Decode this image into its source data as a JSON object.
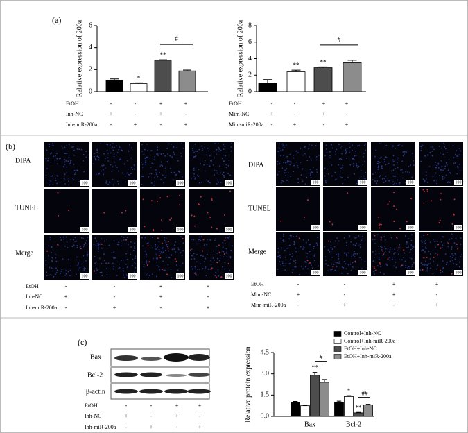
{
  "chart_data": [
    {
      "type": "bar",
      "y_label": "Relative  expression of 200a",
      "values": [
        1.0,
        0.72,
        2.85,
        1.88
      ],
      "errors": [
        0.15,
        0.08,
        0.05,
        0.08
      ],
      "colors": [
        "#000000",
        "#ffffff",
        "#4d4d4d",
        "#8c8c8c"
      ],
      "ylim": [
        0,
        6
      ],
      "yticks": [
        0,
        2,
        4,
        6
      ],
      "significance": [
        null,
        "*",
        "**",
        null
      ],
      "bracket_label": "#",
      "conditions": [
        {
          "name": "EtOH",
          "marks": [
            "-",
            "-",
            "+",
            "+"
          ]
        },
        {
          "name": "Inh-NC",
          "marks": [
            "+",
            "-",
            "+",
            "-"
          ]
        },
        {
          "name": "Inh-miR-200a",
          "marks": [
            "-",
            "+",
            "-",
            "+"
          ]
        }
      ]
    },
    {
      "type": "bar",
      "y_label": "Relative expression of 200a",
      "values": [
        1.0,
        2.4,
        2.9,
        3.5
      ],
      "errors": [
        0.45,
        0.2,
        0.1,
        0.3
      ],
      "colors": [
        "#000000",
        "#ffffff",
        "#4d4d4d",
        "#8c8c8c"
      ],
      "ylim": [
        0,
        8
      ],
      "yticks": [
        0,
        2,
        4,
        6,
        8
      ],
      "significance": [
        null,
        "**",
        "**",
        null
      ],
      "bracket_label": "#",
      "conditions": [
        {
          "name": "EtOH",
          "marks": [
            "-",
            "-",
            "+",
            "+"
          ]
        },
        {
          "name": "Mim-NC",
          "marks": [
            "+",
            "-",
            "+",
            "-"
          ]
        },
        {
          "name": "Mim-miR-200a",
          "marks": [
            "-",
            "+",
            "-",
            "+"
          ]
        }
      ]
    },
    {
      "type": "grouped_bar",
      "y_label": "Relative protein expression",
      "categories": [
        "Bax",
        "Bcl-2"
      ],
      "series": [
        {
          "name": "Control+Inh-NC",
          "color": "#000000",
          "values": [
            1.0,
            1.0
          ],
          "errors": [
            0.05,
            0.07
          ],
          "significance": [
            null,
            null
          ]
        },
        {
          "name": "Control+Inh-miR-200a",
          "color": "#ffffff",
          "values": [
            0.75,
            1.4
          ],
          "errors": [
            0.02,
            0.06
          ],
          "significance": [
            null,
            "*"
          ]
        },
        {
          "name": "EtOH+Inh-NC",
          "color": "#4d4d4d",
          "values": [
            2.9,
            0.25
          ],
          "errors": [
            0.2,
            0.03
          ],
          "significance": [
            "**",
            "**"
          ]
        },
        {
          "name": "EtOH+Inh-miR-200a",
          "color": "#8c8c8c",
          "values": [
            2.4,
            0.8
          ],
          "errors": [
            0.2,
            0.05
          ],
          "significance": [
            null,
            null
          ]
        }
      ],
      "ylim": [
        0,
        4.5
      ],
      "yticks": [
        {
          "value": 0,
          "label": "0.0"
        },
        1.5,
        {
          "value": 3,
          "label": "3.0"
        },
        4.5
      ],
      "bracket_labels": [
        "#",
        "##"
      ]
    }
  ],
  "panels": {
    "a": {
      "label": "(a)"
    },
    "b": {
      "label": "(b)",
      "row_labels": [
        "DIPA",
        "TUNEL",
        "Merge"
      ],
      "scale_label": "100",
      "left_conditions": [
        {
          "name": "EtOH",
          "marks": [
            "-",
            "-",
            "+",
            "+"
          ]
        },
        {
          "name": "Inh-NC",
          "marks": [
            "+",
            "-",
            "+",
            "-"
          ]
        },
        {
          "name": "Inh-miR-200a",
          "marks": [
            "-",
            "+",
            "-",
            "+"
          ]
        }
      ],
      "right_conditions": [
        {
          "name": "EtOH",
          "marks": [
            "-",
            "-",
            "+",
            "+"
          ]
        },
        {
          "name": "Mim-NC",
          "marks": [
            "+",
            "-",
            "+",
            "-"
          ]
        },
        {
          "name": "Mim-miR-200a",
          "marks": [
            "-",
            "+",
            "-",
            "+"
          ]
        }
      ]
    },
    "c": {
      "label": "(c)",
      "blot_labels": [
        "Bax",
        "Bcl-2",
        "β-actin"
      ],
      "conditions": [
        {
          "name": "EtOH",
          "marks": [
            "-",
            "-",
            "+",
            "+"
          ]
        },
        {
          "name": "Inh-NC",
          "marks": [
            "+",
            "-",
            "+",
            "-"
          ]
        },
        {
          "name": "Inh-miR-200a",
          "marks": [
            "-",
            "+",
            "-",
            "+"
          ]
        }
      ]
    }
  }
}
